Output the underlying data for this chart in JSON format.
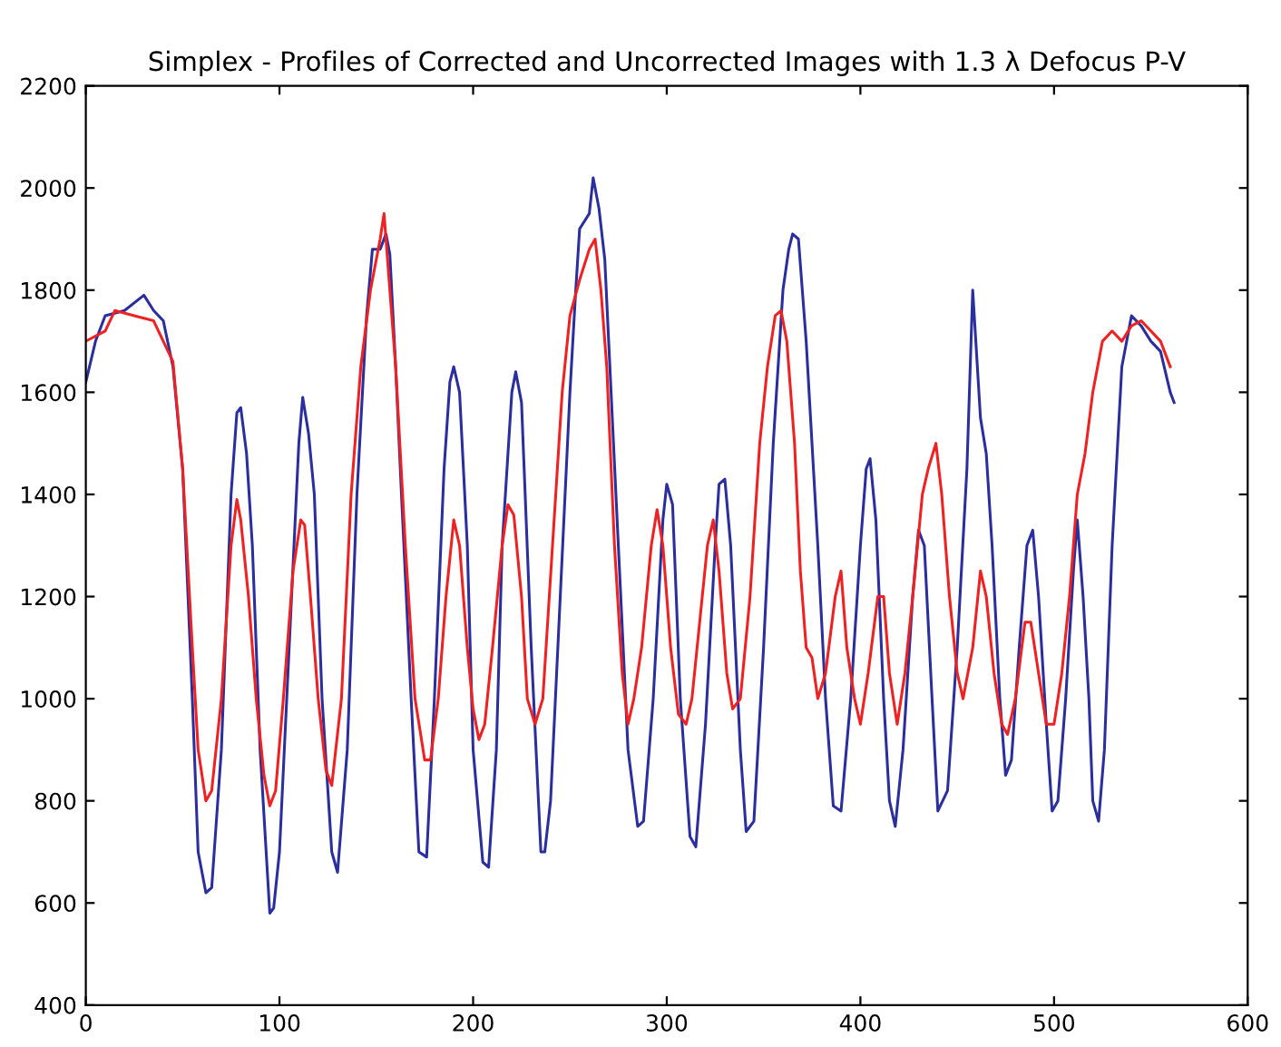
{
  "chart_data": {
    "type": "line",
    "title": "Simplex - Profiles of Corrected and Uncorrected Images with 1.3 λ Defocus P-V",
    "xlim": [
      0,
      600
    ],
    "xticks": [
      0,
      100,
      200,
      300,
      400,
      500,
      600
    ],
    "ylim": [
      400,
      2200
    ],
    "yticks": [
      400,
      600,
      800,
      1000,
      1200,
      1400,
      1600,
      1800,
      2000,
      2200
    ],
    "grid": false,
    "series": [
      {
        "color": "#2b2f9e",
        "x": [
          0,
          5,
          10,
          20,
          30,
          35,
          40,
          45,
          50,
          55,
          58,
          62,
          65,
          70,
          75,
          78,
          80,
          83,
          86,
          90,
          95,
          97,
          100,
          105,
          110,
          112,
          115,
          118,
          122,
          127,
          130,
          135,
          140,
          145,
          148,
          152,
          155,
          157,
          160,
          163,
          168,
          172,
          176,
          180,
          185,
          188,
          190,
          193,
          197,
          200,
          205,
          208,
          212,
          215,
          220,
          222,
          225,
          230,
          235,
          237,
          240,
          245,
          250,
          253,
          255,
          260,
          262,
          265,
          268,
          270,
          275,
          280,
          285,
          288,
          293,
          298,
          300,
          303,
          307,
          312,
          315,
          320,
          325,
          327,
          330,
          333,
          338,
          341,
          345,
          350,
          355,
          360,
          363,
          365,
          368,
          372,
          375,
          378,
          382,
          386,
          390,
          395,
          400,
          403,
          405,
          408,
          412,
          415,
          418,
          422,
          427,
          430,
          433,
          437,
          440,
          445,
          450,
          455,
          458,
          462,
          465,
          468,
          472,
          475,
          478,
          482,
          486,
          489,
          492,
          496,
          499,
          502,
          506,
          510,
          512,
          515,
          518,
          520,
          523,
          526,
          530,
          535,
          540,
          545,
          550,
          555,
          560,
          562
        ],
        "values": [
          1620,
          1700,
          1750,
          1760,
          1790,
          1760,
          1740,
          1650,
          1450,
          1000,
          700,
          620,
          630,
          900,
          1400,
          1560,
          1570,
          1480,
          1300,
          900,
          580,
          590,
          700,
          1100,
          1500,
          1590,
          1520,
          1400,
          1000,
          700,
          660,
          900,
          1400,
          1750,
          1880,
          1880,
          1910,
          1870,
          1650,
          1400,
          1000,
          700,
          690,
          1000,
          1450,
          1620,
          1650,
          1600,
          1300,
          900,
          680,
          670,
          900,
          1300,
          1600,
          1640,
          1580,
          1100,
          700,
          700,
          800,
          1200,
          1600,
          1800,
          1920,
          1950,
          2020,
          1960,
          1860,
          1700,
          1300,
          900,
          750,
          760,
          1000,
          1350,
          1420,
          1380,
          1000,
          730,
          710,
          950,
          1300,
          1420,
          1430,
          1300,
          900,
          740,
          760,
          1100,
          1500,
          1800,
          1880,
          1910,
          1900,
          1700,
          1500,
          1300,
          1000,
          790,
          780,
          1000,
          1300,
          1450,
          1470,
          1350,
          1000,
          800,
          750,
          900,
          1200,
          1330,
          1300,
          1000,
          780,
          820,
          1100,
          1450,
          1800,
          1550,
          1480,
          1300,
          1000,
          850,
          880,
          1100,
          1300,
          1330,
          1200,
          950,
          780,
          800,
          1000,
          1250,
          1350,
          1200,
          1000,
          800,
          760,
          900,
          1300,
          1650,
          1750,
          1730,
          1700,
          1680,
          1600,
          1580
        ]
      },
      {
        "color": "#ee2222",
        "x": [
          0,
          10,
          15,
          25,
          35,
          40,
          45,
          50,
          55,
          58,
          62,
          65,
          70,
          75,
          78,
          80,
          84,
          88,
          92,
          95,
          98,
          102,
          107,
          111,
          113,
          116,
          120,
          124,
          127,
          132,
          137,
          142,
          147,
          152,
          154,
          157,
          160,
          165,
          170,
          175,
          178,
          182,
          186,
          190,
          193,
          197,
          200,
          203,
          206,
          210,
          215,
          218,
          221,
          225,
          228,
          232,
          236,
          241,
          246,
          250,
          255,
          260,
          263,
          266,
          269,
          273,
          277,
          280,
          283,
          287,
          292,
          295,
          298,
          302,
          306,
          310,
          313,
          317,
          321,
          324,
          327,
          331,
          334,
          338,
          343,
          348,
          352,
          356,
          359,
          362,
          366,
          369,
          372,
          375,
          378,
          382,
          387,
          390,
          393,
          397,
          400,
          404,
          409,
          412,
          415,
          419,
          423,
          427,
          432,
          435,
          439,
          442,
          446,
          450,
          453,
          458,
          462,
          465,
          469,
          473,
          476,
          480,
          485,
          488,
          492,
          496,
          500,
          504,
          508,
          512,
          516,
          520,
          525,
          530,
          535,
          540,
          545,
          550,
          555,
          560
        ],
        "values": [
          1700,
          1720,
          1760,
          1750,
          1740,
          1700,
          1660,
          1450,
          1100,
          900,
          800,
          820,
          1000,
          1300,
          1390,
          1350,
          1200,
          1000,
          850,
          790,
          820,
          1000,
          1250,
          1350,
          1340,
          1200,
          1000,
          860,
          830,
          1000,
          1400,
          1650,
          1800,
          1900,
          1950,
          1800,
          1650,
          1300,
          1000,
          880,
          880,
          1000,
          1200,
          1350,
          1300,
          1100,
          980,
          920,
          950,
          1100,
          1300,
          1380,
          1360,
          1200,
          1000,
          950,
          1000,
          1300,
          1600,
          1750,
          1820,
          1880,
          1900,
          1800,
          1650,
          1300,
          1050,
          950,
          1000,
          1100,
          1300,
          1370,
          1300,
          1100,
          970,
          950,
          1000,
          1150,
          1300,
          1350,
          1250,
          1050,
          980,
          1000,
          1200,
          1500,
          1650,
          1750,
          1760,
          1700,
          1500,
          1250,
          1100,
          1080,
          1000,
          1050,
          1200,
          1250,
          1100,
          1000,
          950,
          1050,
          1200,
          1200,
          1050,
          950,
          1050,
          1200,
          1400,
          1450,
          1500,
          1400,
          1200,
          1050,
          1000,
          1100,
          1250,
          1200,
          1050,
          950,
          930,
          1000,
          1150,
          1150,
          1050,
          950,
          950,
          1050,
          1200,
          1400,
          1480,
          1600,
          1700,
          1720,
          1700,
          1730,
          1740,
          1720,
          1700,
          1650
        ]
      }
    ]
  }
}
